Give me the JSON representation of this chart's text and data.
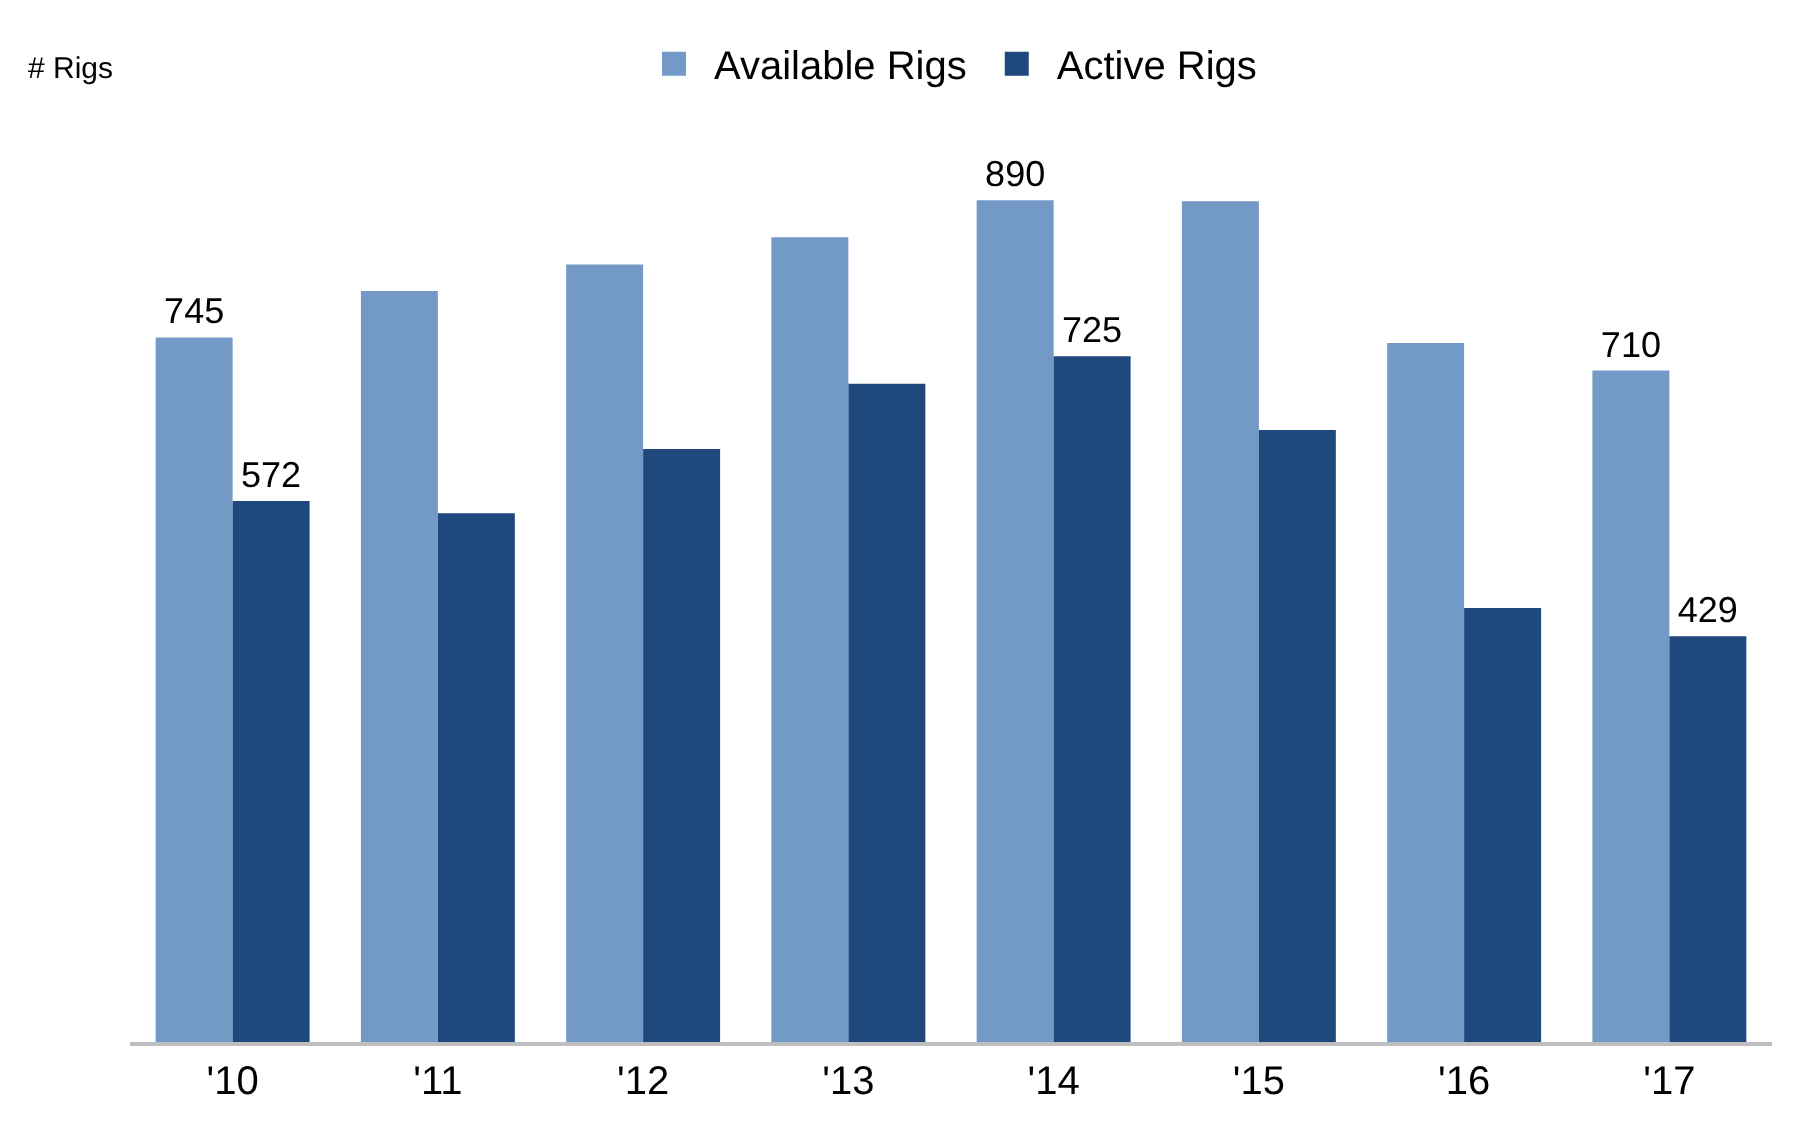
{
  "chart_data": {
    "type": "bar",
    "ylabel": "# Rigs",
    "categories": [
      "'10",
      "'11",
      "'12",
      "'13",
      "'14",
      "'15",
      "'16",
      "'17"
    ],
    "series": [
      {
        "name": "Available Rigs",
        "color": "#7399c6",
        "values": [
          745,
          794,
          822,
          851,
          890,
          889,
          739,
          710
        ],
        "value_labels": [
          "745",
          null,
          null,
          null,
          "890",
          null,
          null,
          "710"
        ]
      },
      {
        "name": "Active Rigs",
        "color": "#1f497d",
        "values": [
          572,
          559,
          627,
          696,
          725,
          647,
          459,
          429
        ],
        "value_labels": [
          "572",
          null,
          null,
          null,
          "725",
          null,
          null,
          "429"
        ]
      }
    ],
    "tick_labels": "x",
    "grid": false,
    "legend": "top"
  }
}
